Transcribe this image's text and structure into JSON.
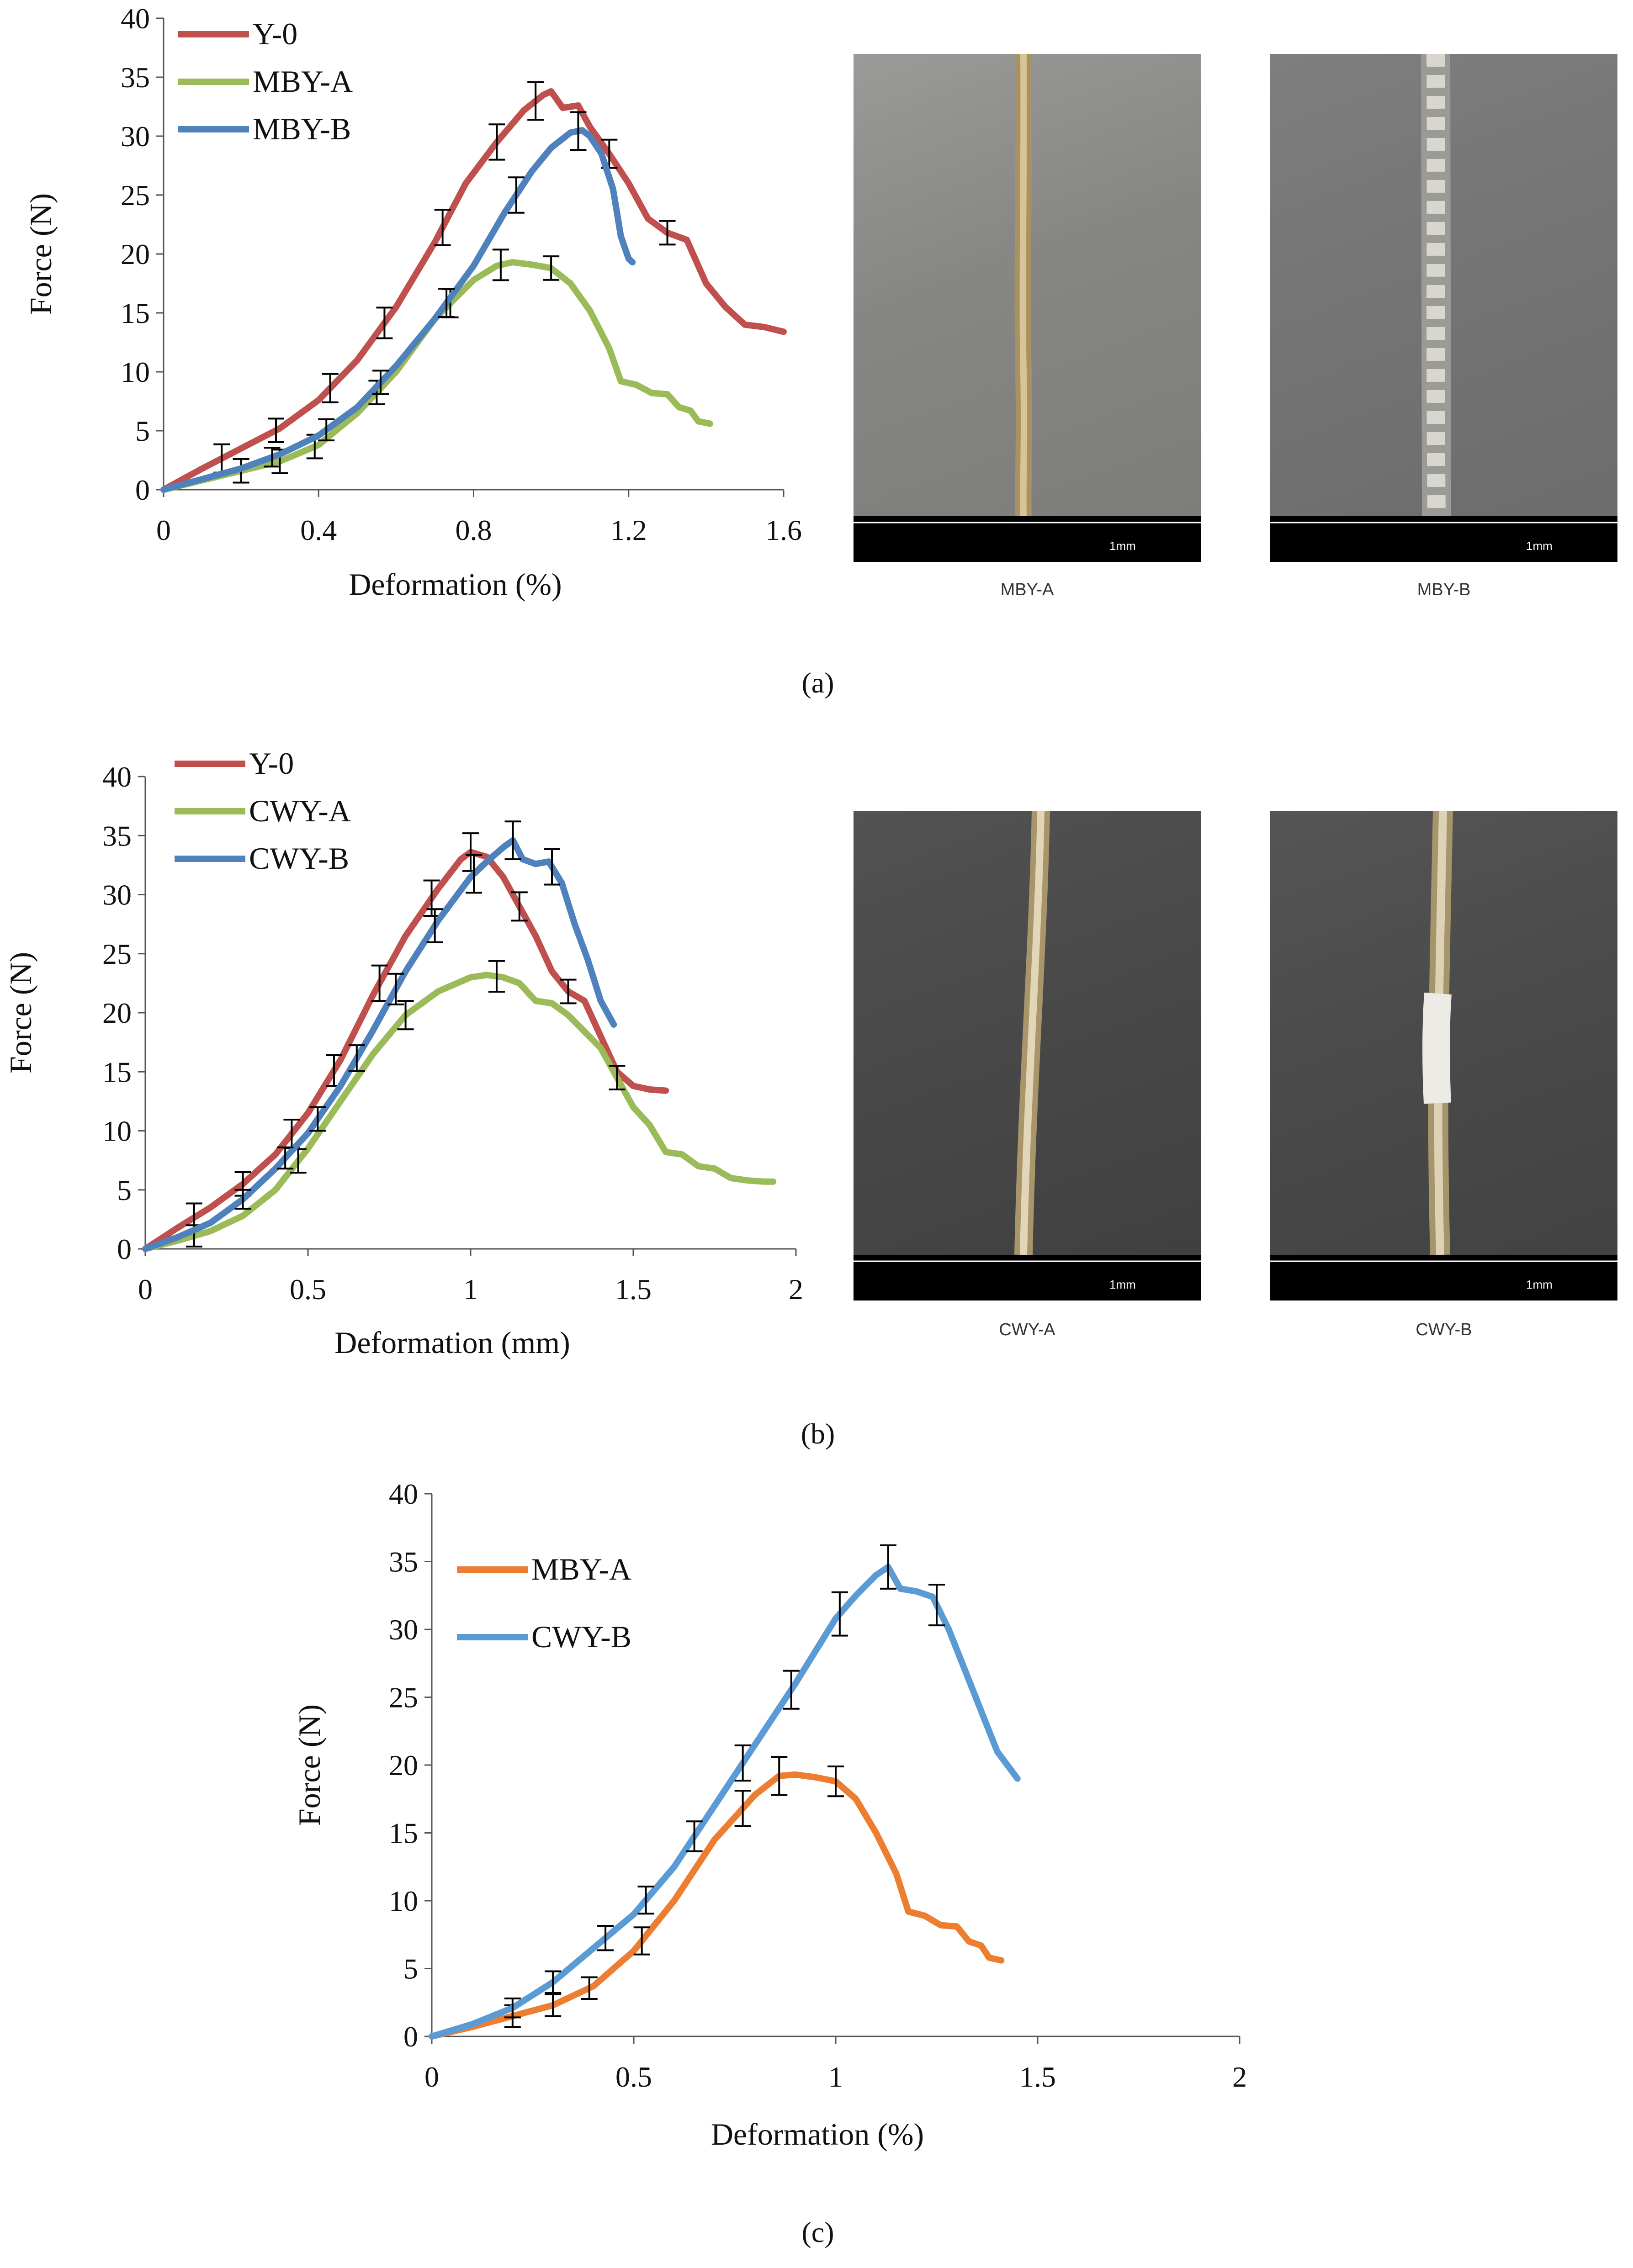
{
  "panels": {
    "a": {
      "caption": "(a)",
      "photo_labels": [
        "MBY-A",
        "MBY-B"
      ],
      "scale_label": "1mm"
    },
    "b": {
      "caption": "(b)",
      "photo_labels": [
        "CWY-A",
        "CWY-B"
      ],
      "scale_label": "1mm"
    },
    "c": {
      "caption": "(c)"
    }
  },
  "colors": {
    "Y-0": "#c0504d",
    "MBY-A_ab": "#9bbb59",
    "MBY-B": "#4f81bd",
    "CWY-A": "#9bbb59",
    "CWY-B_b": "#4f81bd",
    "MBY-A_c": "#ed7d31",
    "CWY-B_c": "#5b9bd5",
    "photo_a1": "#8a8a88",
    "photo_a2": "#7c7c7c",
    "photo_b": "#4d4d4d"
  },
  "chart_data": [
    {
      "type": "line",
      "xlabel": "Deformation (%)",
      "ylabel": "Force (N)",
      "xlim": [
        0,
        1.6
      ],
      "ylim": [
        0,
        40
      ],
      "xticks": [
        "0",
        "0.4",
        "0.8",
        "1.2",
        "1.6"
      ],
      "yticks": [
        "0",
        "5",
        "10",
        "15",
        "20",
        "25",
        "30",
        "35",
        "40"
      ],
      "legend": "top-left",
      "series": [
        {
          "name": "Y-0",
          "color_key": "Y-0",
          "points": [
            [
              0,
              0
            ],
            [
              0.1,
              1.8
            ],
            [
              0.2,
              3.5
            ],
            [
              0.3,
              5.2
            ],
            [
              0.4,
              7.6
            ],
            [
              0.5,
              11
            ],
            [
              0.6,
              15.5
            ],
            [
              0.7,
              21
            ],
            [
              0.78,
              26
            ],
            [
              0.86,
              29.5
            ],
            [
              0.93,
              32.2
            ],
            [
              0.98,
              33.5
            ],
            [
              1.0,
              33.8
            ],
            [
              1.03,
              32.4
            ],
            [
              1.07,
              32.6
            ],
            [
              1.1,
              30.8
            ],
            [
              1.15,
              28.5
            ],
            [
              1.2,
              26
            ],
            [
              1.25,
              23
            ],
            [
              1.3,
              21.8
            ],
            [
              1.35,
              21.2
            ],
            [
              1.4,
              17.5
            ],
            [
              1.45,
              15.5
            ],
            [
              1.5,
              14
            ],
            [
              1.55,
              13.8
            ],
            [
              1.6,
              13.4
            ]
          ],
          "error_x": [
            0.15,
            0.29,
            0.43,
            0.57,
            0.72,
            0.86,
            0.96,
            1.15,
            1.3
          ],
          "error_y": [
            1.2,
            1.0,
            1.2,
            1.3,
            1.5,
            1.5,
            1.6,
            1.2,
            1.0
          ]
        },
        {
          "name": "MBY-A",
          "color_key": "MBY-A_ab",
          "points": [
            [
              0,
              0
            ],
            [
              0.1,
              0.8
            ],
            [
              0.2,
              1.6
            ],
            [
              0.3,
              2.4
            ],
            [
              0.4,
              3.8
            ],
            [
              0.5,
              6.5
            ],
            [
              0.6,
              10
            ],
            [
              0.7,
              14.5
            ],
            [
              0.8,
              17.8
            ],
            [
              0.86,
              19
            ],
            [
              0.9,
              19.3
            ],
            [
              0.95,
              19.1
            ],
            [
              1.0,
              18.8
            ],
            [
              1.05,
              17.5
            ],
            [
              1.1,
              15.2
            ],
            [
              1.15,
              12
            ],
            [
              1.18,
              9.2
            ],
            [
              1.22,
              8.9
            ],
            [
              1.26,
              8.2
            ],
            [
              1.3,
              8.1
            ],
            [
              1.33,
              7
            ],
            [
              1.36,
              6.7
            ],
            [
              1.38,
              5.8
            ],
            [
              1.41,
              5.6
            ]
          ],
          "error_x": [
            0.2,
            0.3,
            0.39,
            0.55,
            0.74,
            0.87,
            1.0
          ],
          "error_y": [
            1.0,
            1.0,
            1.0,
            1.0,
            1.2,
            1.3,
            1.0
          ]
        },
        {
          "name": "MBY-B",
          "color_key": "MBY-B",
          "points": [
            [
              0,
              0
            ],
            [
              0.1,
              0.9
            ],
            [
              0.2,
              1.8
            ],
            [
              0.3,
              3
            ],
            [
              0.4,
              4.6
            ],
            [
              0.5,
              7
            ],
            [
              0.6,
              10.5
            ],
            [
              0.7,
              14.5
            ],
            [
              0.8,
              19
            ],
            [
              0.88,
              23.5
            ],
            [
              0.95,
              27
            ],
            [
              1.0,
              29
            ],
            [
              1.05,
              30.3
            ],
            [
              1.08,
              30.5
            ],
            [
              1.1,
              30
            ],
            [
              1.13,
              28.5
            ],
            [
              1.16,
              25.5
            ],
            [
              1.18,
              21.5
            ],
            [
              1.2,
              19.6
            ],
            [
              1.21,
              19.3
            ]
          ],
          "error_x": [
            0.28,
            0.42,
            0.56,
            0.73,
            0.91,
            1.07
          ],
          "error_y": [
            0.8,
            0.9,
            1.0,
            1.2,
            1.5,
            1.6
          ]
        }
      ]
    },
    {
      "type": "line",
      "xlabel": "Deformation (mm)",
      "ylabel": "Force (N)",
      "xlim": [
        0,
        2
      ],
      "ylim": [
        0,
        40
      ],
      "xticks": [
        "0",
        "0.5",
        "1",
        "1.5",
        "2"
      ],
      "yticks": [
        "0",
        "5",
        "10",
        "15",
        "20",
        "25",
        "30",
        "35",
        "40"
      ],
      "legend": "top-left",
      "series": [
        {
          "name": "Y-0",
          "color_key": "Y-0",
          "points": [
            [
              0,
              0
            ],
            [
              0.1,
              1.8
            ],
            [
              0.2,
              3.5
            ],
            [
              0.3,
              5.5
            ],
            [
              0.4,
              8
            ],
            [
              0.5,
              11.5
            ],
            [
              0.6,
              16
            ],
            [
              0.7,
              21.5
            ],
            [
              0.8,
              26.5
            ],
            [
              0.9,
              30.5
            ],
            [
              0.97,
              33
            ],
            [
              1.0,
              33.6
            ],
            [
              1.05,
              33.2
            ],
            [
              1.1,
              31.5
            ],
            [
              1.15,
              29
            ],
            [
              1.2,
              26.5
            ],
            [
              1.25,
              23.5
            ],
            [
              1.3,
              21.8
            ],
            [
              1.35,
              21
            ],
            [
              1.4,
              18
            ],
            [
              1.45,
              15
            ],
            [
              1.5,
              13.8
            ],
            [
              1.55,
              13.5
            ],
            [
              1.6,
              13.4
            ]
          ],
          "error_x": [
            0.15,
            0.3,
            0.45,
            0.58,
            0.72,
            0.88,
            1.0,
            1.15,
            1.3
          ],
          "error_y": [
            1.2,
            1.0,
            1.2,
            1.3,
            1.5,
            1.5,
            1.6,
            1.2,
            1.0
          ]
        },
        {
          "name": "CWY-A",
          "color_key": "CWY-A",
          "points": [
            [
              0,
              0
            ],
            [
              0.1,
              0.7
            ],
            [
              0.2,
              1.5
            ],
            [
              0.3,
              2.8
            ],
            [
              0.4,
              5
            ],
            [
              0.5,
              8.5
            ],
            [
              0.6,
              12.5
            ],
            [
              0.7,
              16.5
            ],
            [
              0.8,
              19.8
            ],
            [
              0.9,
              21.8
            ],
            [
              1.0,
              23
            ],
            [
              1.05,
              23.2
            ],
            [
              1.1,
              23
            ],
            [
              1.15,
              22.5
            ],
            [
              1.2,
              21
            ],
            [
              1.25,
              20.8
            ],
            [
              1.3,
              19.8
            ],
            [
              1.4,
              17
            ],
            [
              1.45,
              14.5
            ],
            [
              1.5,
              12
            ],
            [
              1.55,
              10.5
            ],
            [
              1.6,
              8.2
            ],
            [
              1.65,
              8
            ],
            [
              1.7,
              7
            ],
            [
              1.75,
              6.8
            ],
            [
              1.8,
              6
            ],
            [
              1.85,
              5.8
            ],
            [
              1.9,
              5.7
            ],
            [
              1.93,
              5.7
            ]
          ],
          "error_x": [
            0.15,
            0.47,
            0.8,
            1.08,
            1.45
          ],
          "error_y": [
            0.9,
            1.0,
            1.2,
            1.3,
            1.0
          ]
        },
        {
          "name": "CWY-B",
          "color_key": "CWY-B_b",
          "points": [
            [
              0,
              0
            ],
            [
              0.1,
              1
            ],
            [
              0.2,
              2.2
            ],
            [
              0.3,
              4.2
            ],
            [
              0.4,
              6.8
            ],
            [
              0.5,
              9.8
            ],
            [
              0.6,
              13.8
            ],
            [
              0.7,
              18.5
            ],
            [
              0.8,
              23.5
            ],
            [
              0.9,
              27.8
            ],
            [
              1.0,
              31.5
            ],
            [
              1.05,
              32.8
            ],
            [
              1.1,
              34
            ],
            [
              1.13,
              34.6
            ],
            [
              1.16,
              33
            ],
            [
              1.2,
              32.6
            ],
            [
              1.24,
              32.8
            ],
            [
              1.28,
              31
            ],
            [
              1.32,
              27.5
            ],
            [
              1.36,
              24.5
            ],
            [
              1.4,
              21
            ],
            [
              1.44,
              19
            ]
          ],
          "error_x": [
            0.3,
            0.43,
            0.53,
            0.65,
            0.77,
            0.89,
            1.01,
            1.13,
            1.25
          ],
          "error_y": [
            0.8,
            0.9,
            1.0,
            1.1,
            1.3,
            1.4,
            1.6,
            1.6,
            1.5
          ]
        }
      ]
    },
    {
      "type": "line",
      "xlabel": "Deformation (%)",
      "ylabel": "Force (N)",
      "xlim": [
        0,
        2
      ],
      "ylim": [
        0,
        40
      ],
      "xticks": [
        "0",
        "0.5",
        "1",
        "1.5",
        "2"
      ],
      "yticks": [
        "0",
        "5",
        "10",
        "15",
        "20",
        "25",
        "30",
        "35",
        "40"
      ],
      "legend": "top-left",
      "series": [
        {
          "name": "MBY-A",
          "color_key": "MBY-A_c",
          "points": [
            [
              0,
              0
            ],
            [
              0.1,
              0.7
            ],
            [
              0.2,
              1.5
            ],
            [
              0.3,
              2.3
            ],
            [
              0.4,
              3.7
            ],
            [
              0.5,
              6.3
            ],
            [
              0.6,
              10
            ],
            [
              0.7,
              14.5
            ],
            [
              0.8,
              17.8
            ],
            [
              0.86,
              19.2
            ],
            [
              0.9,
              19.3
            ],
            [
              0.95,
              19.1
            ],
            [
              1.0,
              18.8
            ],
            [
              1.05,
              17.5
            ],
            [
              1.1,
              15
            ],
            [
              1.15,
              12
            ],
            [
              1.18,
              9.2
            ],
            [
              1.22,
              8.9
            ],
            [
              1.26,
              8.2
            ],
            [
              1.3,
              8.1
            ],
            [
              1.33,
              7
            ],
            [
              1.36,
              6.7
            ],
            [
              1.38,
              5.8
            ],
            [
              1.41,
              5.6
            ]
          ],
          "error_x": [
            0.2,
            0.3,
            0.39,
            0.52,
            0.77,
            0.86,
            1.0
          ],
          "error_y": [
            0.8,
            0.8,
            0.8,
            1.0,
            1.3,
            1.4,
            1.1
          ]
        },
        {
          "name": "CWY-B",
          "color_key": "CWY-B_c",
          "points": [
            [
              0,
              0
            ],
            [
              0.1,
              0.9
            ],
            [
              0.2,
              2.1
            ],
            [
              0.3,
              4
            ],
            [
              0.4,
              6.5
            ],
            [
              0.5,
              9
            ],
            [
              0.6,
              12.5
            ],
            [
              0.7,
              17
            ],
            [
              0.8,
              21.5
            ],
            [
              0.9,
              26
            ],
            [
              1.0,
              30.8
            ],
            [
              1.05,
              32.5
            ],
            [
              1.1,
              34
            ],
            [
              1.13,
              34.6
            ],
            [
              1.16,
              33
            ],
            [
              1.2,
              32.8
            ],
            [
              1.24,
              32.4
            ],
            [
              1.28,
              30
            ],
            [
              1.32,
              27
            ],
            [
              1.36,
              24
            ],
            [
              1.4,
              21
            ],
            [
              1.45,
              19
            ]
          ],
          "error_x": [
            0.2,
            0.3,
            0.43,
            0.53,
            0.65,
            0.77,
            0.89,
            1.01,
            1.13,
            1.25
          ],
          "error_y": [
            0.7,
            0.8,
            0.9,
            1.0,
            1.1,
            1.3,
            1.4,
            1.6,
            1.6,
            1.5
          ]
        }
      ]
    }
  ]
}
